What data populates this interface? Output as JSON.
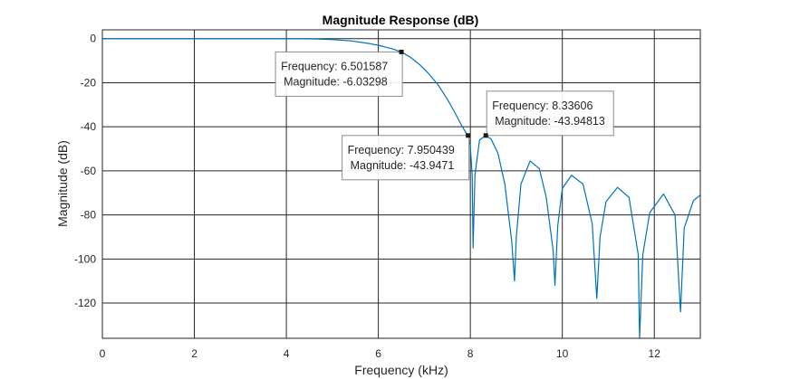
{
  "chart_data": {
    "type": "line",
    "title": "Magnitude Response (dB)",
    "xlabel": "Frequency (kHz)",
    "ylabel": "Magnitude (dB)",
    "xlim": [
      0,
      13
    ],
    "ylim": [
      -136,
      4
    ],
    "x_ticks": [
      0,
      2,
      4,
      6,
      8,
      10,
      12
    ],
    "y_ticks": [
      0,
      -20,
      -40,
      -60,
      -80,
      -100,
      -120
    ],
    "grid": true,
    "colors": {
      "line": "#0072BD",
      "grid": "#262626",
      "axes": "#262626",
      "marker": "#1a1a1a"
    },
    "series": [
      {
        "x": [
          0,
          1,
          2,
          3,
          4,
          4.6,
          5,
          5.4,
          5.8,
          6.1,
          6.3,
          6.501587,
          6.7,
          6.9,
          7.1,
          7.3,
          7.5,
          7.65,
          7.8,
          7.9,
          7.950439,
          8.0,
          8.04,
          8.06,
          8.1,
          8.2,
          8.33606,
          8.45,
          8.6,
          8.75,
          8.9,
          8.96,
          9.0,
          9.1,
          9.3,
          9.5,
          9.65,
          9.8,
          9.84,
          9.9,
          10.0,
          10.2,
          10.45,
          10.65,
          10.75,
          10.82,
          10.95,
          11.2,
          11.45,
          11.65,
          11.68,
          11.75,
          11.9,
          12.2,
          12.45,
          12.57,
          12.65,
          12.85,
          13.0
        ],
        "y": [
          0,
          0,
          0,
          0,
          0,
          -0.1,
          -0.4,
          -1.0,
          -2.2,
          -3.5,
          -4.6,
          -6.03298,
          -8.5,
          -11.8,
          -16.0,
          -21.0,
          -27.5,
          -33.0,
          -39.0,
          -42.5,
          -43.9471,
          -49.0,
          -62.0,
          -95.0,
          -62.0,
          -46.0,
          -43.94813,
          -45.5,
          -52.0,
          -66.0,
          -92.0,
          -110.0,
          -90.0,
          -66.0,
          -55.5,
          -59.0,
          -72.0,
          -96.0,
          -112.0,
          -85.0,
          -68.0,
          -62.0,
          -66.0,
          -84.0,
          -118.0,
          -90.0,
          -74.0,
          -67.5,
          -72.0,
          -98.0,
          -136.0,
          -98.0,
          -79.0,
          -70.5,
          -80.0,
          -124.0,
          -86.0,
          -73.5,
          -71.0
        ]
      }
    ],
    "datatips": [
      {
        "frequency_label": "Frequency:",
        "frequency": "6.501587",
        "magnitude_label": "Magnitude:",
        "magnitude": "-6.03298",
        "x": 6.501587,
        "y": -6.03298,
        "placement": "bottom-left"
      },
      {
        "frequency_label": "Frequency:",
        "frequency": "7.950439",
        "magnitude_label": "Magnitude:",
        "magnitude": "-43.9471",
        "x": 7.950439,
        "y": -43.9471,
        "placement": "bottom-left"
      },
      {
        "frequency_label": "Frequency:",
        "frequency": "8.33606",
        "magnitude_label": "Magnitude:",
        "magnitude": "-43.94813",
        "x": 8.33606,
        "y": -43.94813,
        "placement": "top-right"
      }
    ]
  }
}
